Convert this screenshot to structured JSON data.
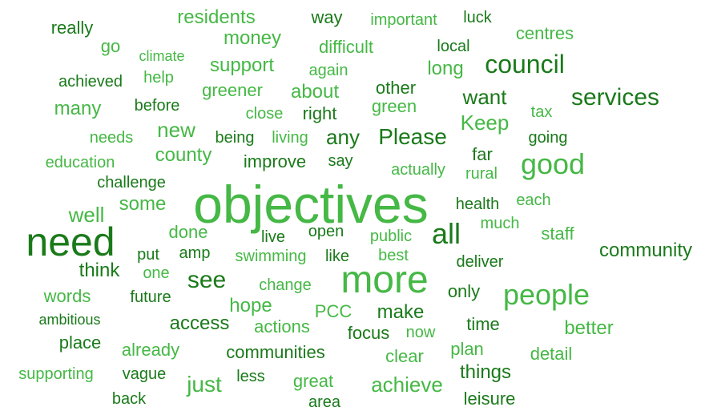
{
  "palette": {
    "dark": "#1a7a1a",
    "medium": "#2e9a2e",
    "light": "#45b845"
  },
  "words": [
    {
      "text": "objectives",
      "weight": 66,
      "tone": "light"
    },
    {
      "text": "need",
      "weight": 50,
      "tone": "dark"
    },
    {
      "text": "more",
      "weight": 48,
      "tone": "light"
    },
    {
      "text": "all",
      "weight": 36,
      "tone": "dark"
    },
    {
      "text": "good",
      "weight": 36,
      "tone": "light"
    },
    {
      "text": "people",
      "weight": 36,
      "tone": "light"
    },
    {
      "text": "council",
      "weight": 32,
      "tone": "dark"
    },
    {
      "text": "services",
      "weight": 30,
      "tone": "dark"
    },
    {
      "text": "see",
      "weight": 30,
      "tone": "dark"
    },
    {
      "text": "Please",
      "weight": 28,
      "tone": "dark"
    },
    {
      "text": "residents",
      "weight": 24,
      "tone": "light"
    },
    {
      "text": "money",
      "weight": 24,
      "tone": "light"
    },
    {
      "text": "want",
      "weight": 26,
      "tone": "dark"
    },
    {
      "text": "any",
      "weight": 26,
      "tone": "dark"
    },
    {
      "text": "new",
      "weight": 26,
      "tone": "light"
    },
    {
      "text": "Keep",
      "weight": 26,
      "tone": "light"
    },
    {
      "text": "well",
      "weight": 26,
      "tone": "light"
    },
    {
      "text": "support",
      "weight": 24,
      "tone": "light"
    },
    {
      "text": "long",
      "weight": 24,
      "tone": "light"
    },
    {
      "text": "about",
      "weight": 24,
      "tone": "light"
    },
    {
      "text": "many",
      "weight": 24,
      "tone": "light"
    },
    {
      "text": "county",
      "weight": 24,
      "tone": "light"
    },
    {
      "text": "hope",
      "weight": 24,
      "tone": "light"
    },
    {
      "text": "make",
      "weight": 24,
      "tone": "dark"
    },
    {
      "text": "better",
      "weight": 24,
      "tone": "light"
    },
    {
      "text": "access",
      "weight": 24,
      "tone": "dark"
    },
    {
      "text": "just",
      "weight": 28,
      "tone": "light"
    },
    {
      "text": "achieve",
      "weight": 26,
      "tone": "light"
    },
    {
      "text": "things",
      "weight": 24,
      "tone": "dark"
    },
    {
      "text": "community",
      "weight": 24,
      "tone": "dark"
    },
    {
      "text": "think",
      "weight": 24,
      "tone": "dark"
    },
    {
      "text": "some",
      "weight": 24,
      "tone": "light"
    },
    {
      "text": "communities",
      "weight": 22,
      "tone": "dark"
    },
    {
      "text": "really",
      "weight": 22,
      "tone": "dark"
    },
    {
      "text": "way",
      "weight": 22,
      "tone": "dark"
    },
    {
      "text": "important",
      "weight": 20,
      "tone": "light"
    },
    {
      "text": "luck",
      "weight": 20,
      "tone": "dark"
    },
    {
      "text": "centres",
      "weight": 22,
      "tone": "light"
    },
    {
      "text": "go",
      "weight": 22,
      "tone": "light"
    },
    {
      "text": "difficult",
      "weight": 22,
      "tone": "light"
    },
    {
      "text": "local",
      "weight": 20,
      "tone": "dark"
    },
    {
      "text": "climate",
      "weight": 18,
      "tone": "light"
    },
    {
      "text": "again",
      "weight": 20,
      "tone": "light"
    },
    {
      "text": "achieved",
      "weight": 20,
      "tone": "dark"
    },
    {
      "text": "help",
      "weight": 20,
      "tone": "light"
    },
    {
      "text": "greener",
      "weight": 22,
      "tone": "light"
    },
    {
      "text": "other",
      "weight": 22,
      "tone": "dark"
    },
    {
      "text": "before",
      "weight": 20,
      "tone": "dark"
    },
    {
      "text": "close",
      "weight": 20,
      "tone": "light"
    },
    {
      "text": "right",
      "weight": 22,
      "tone": "dark"
    },
    {
      "text": "green",
      "weight": 22,
      "tone": "light"
    },
    {
      "text": "tax",
      "weight": 20,
      "tone": "light"
    },
    {
      "text": "needs",
      "weight": 20,
      "tone": "light"
    },
    {
      "text": "being",
      "weight": 20,
      "tone": "dark"
    },
    {
      "text": "living",
      "weight": 20,
      "tone": "light"
    },
    {
      "text": "going",
      "weight": 20,
      "tone": "dark"
    },
    {
      "text": "far",
      "weight": 22,
      "tone": "dark"
    },
    {
      "text": "education",
      "weight": 20,
      "tone": "light"
    },
    {
      "text": "improve",
      "weight": 22,
      "tone": "dark"
    },
    {
      "text": "say",
      "weight": 20,
      "tone": "dark"
    },
    {
      "text": "actually",
      "weight": 20,
      "tone": "light"
    },
    {
      "text": "rural",
      "weight": 20,
      "tone": "light"
    },
    {
      "text": "challenge",
      "weight": 20,
      "tone": "dark"
    },
    {
      "text": "health",
      "weight": 20,
      "tone": "dark"
    },
    {
      "text": "each",
      "weight": 20,
      "tone": "light"
    },
    {
      "text": "much",
      "weight": 20,
      "tone": "light"
    },
    {
      "text": "done",
      "weight": 22,
      "tone": "light"
    },
    {
      "text": "live",
      "weight": 20,
      "tone": "dark"
    },
    {
      "text": "open",
      "weight": 20,
      "tone": "dark"
    },
    {
      "text": "public",
      "weight": 20,
      "tone": "light"
    },
    {
      "text": "staff",
      "weight": 22,
      "tone": "light"
    },
    {
      "text": "put",
      "weight": 20,
      "tone": "dark"
    },
    {
      "text": "amp",
      "weight": 20,
      "tone": "dark"
    },
    {
      "text": "swimming",
      "weight": 20,
      "tone": "light"
    },
    {
      "text": "like",
      "weight": 20,
      "tone": "dark"
    },
    {
      "text": "best",
      "weight": 20,
      "tone": "light"
    },
    {
      "text": "deliver",
      "weight": 20,
      "tone": "dark"
    },
    {
      "text": "one",
      "weight": 20,
      "tone": "light"
    },
    {
      "text": "change",
      "weight": 20,
      "tone": "light"
    },
    {
      "text": "only",
      "weight": 22,
      "tone": "dark"
    },
    {
      "text": "words",
      "weight": 22,
      "tone": "light"
    },
    {
      "text": "future",
      "weight": 20,
      "tone": "dark"
    },
    {
      "text": "PCC",
      "weight": 22,
      "tone": "light"
    },
    {
      "text": "ambitious",
      "weight": 18,
      "tone": "dark"
    },
    {
      "text": "actions",
      "weight": 22,
      "tone": "light"
    },
    {
      "text": "focus",
      "weight": 22,
      "tone": "dark"
    },
    {
      "text": "now",
      "weight": 20,
      "tone": "light"
    },
    {
      "text": "time",
      "weight": 22,
      "tone": "dark"
    },
    {
      "text": "place",
      "weight": 22,
      "tone": "dark"
    },
    {
      "text": "already",
      "weight": 22,
      "tone": "light"
    },
    {
      "text": "clear",
      "weight": 22,
      "tone": "light"
    },
    {
      "text": "plan",
      "weight": 22,
      "tone": "light"
    },
    {
      "text": "detail",
      "weight": 22,
      "tone": "light"
    },
    {
      "text": "supporting",
      "weight": 20,
      "tone": "light"
    },
    {
      "text": "vague",
      "weight": 20,
      "tone": "dark"
    },
    {
      "text": "less",
      "weight": 20,
      "tone": "dark"
    },
    {
      "text": "great",
      "weight": 22,
      "tone": "light"
    },
    {
      "text": "back",
      "weight": 20,
      "tone": "dark"
    },
    {
      "text": "area",
      "weight": 20,
      "tone": "dark"
    },
    {
      "text": "leisure",
      "weight": 22,
      "tone": "dark"
    }
  ]
}
